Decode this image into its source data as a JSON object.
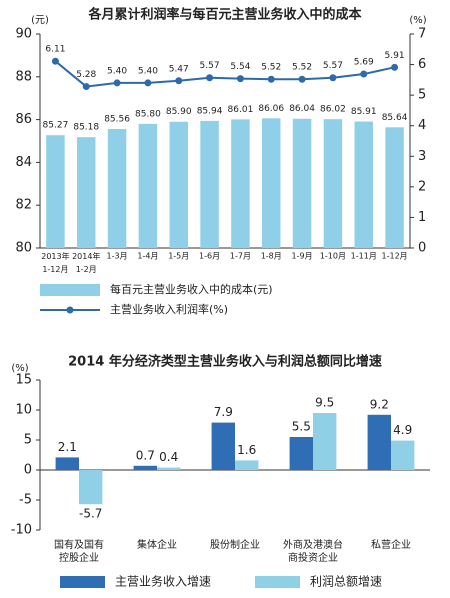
{
  "chart_data": [
    {
      "type": "combo",
      "title": "各月累计利润率与每百元主营业务收入中的成本",
      "y_label": "(元)",
      "y2_label": "(%)",
      "categories": [
        "2013年\n1-12月",
        "2014年\n1-2月",
        "1-3月",
        "1-4月",
        "1-5月",
        "1-6月",
        "1-7月",
        "1-8月",
        "1-9月",
        "1-10月",
        "1-11月",
        "1-12月"
      ],
      "series": [
        {
          "name": "每百元主营业务收入中的成本(元)",
          "type": "bar",
          "color": "#8fd0e8",
          "values": [
            85.27,
            85.18,
            85.56,
            85.8,
            85.9,
            85.94,
            86.01,
            86.06,
            86.04,
            86.02,
            85.91,
            85.64
          ],
          "value_labels": [
            "85.27",
            "85.18",
            "85.56",
            "85.80",
            "85.90",
            "85.94",
            "86.01",
            "86.06",
            "86.04",
            "86.02",
            "85.91",
            "85.64"
          ]
        },
        {
          "name": "主营业务收入利润率(%)",
          "type": "line",
          "axis": "y2",
          "color": "#2e6aa9",
          "values": [
            6.11,
            5.28,
            5.4,
            5.4,
            5.47,
            5.57,
            5.54,
            5.52,
            5.52,
            5.57,
            5.69,
            5.91
          ],
          "value_labels": [
            "6.11",
            "5.28",
            "5.40",
            "5.40",
            "5.47",
            "5.57",
            "5.54",
            "5.52",
            "5.52",
            "5.57",
            "5.69",
            "5.91"
          ]
        }
      ],
      "ylim": [
        80,
        90
      ],
      "yticks": [
        80,
        82,
        84,
        86,
        88,
        90
      ],
      "y2lim": [
        0,
        7
      ],
      "y2ticks": [
        0,
        1,
        2,
        3,
        4,
        5,
        6,
        7
      ]
    },
    {
      "type": "bar",
      "title": "2014 年分经济类型主营业务收入与利润总额同比增速",
      "y_label": "(%)",
      "categories": [
        "国有及国有\n控股企业",
        "集体企业",
        "股份制企业",
        "外商及港澳台\n商投资企业",
        "私营企业"
      ],
      "series": [
        {
          "name": "主营业务收入增速",
          "color": "#2f6db5",
          "values": [
            2.1,
            0.7,
            7.9,
            5.5,
            9.2
          ]
        },
        {
          "name": "利润总额增速",
          "color": "#8fd0e6",
          "values": [
            -5.7,
            0.4,
            1.6,
            9.5,
            4.9
          ]
        }
      ],
      "ylim": [
        -10,
        15
      ],
      "yticks": [
        -10,
        -5,
        0,
        5,
        10,
        15
      ]
    }
  ]
}
